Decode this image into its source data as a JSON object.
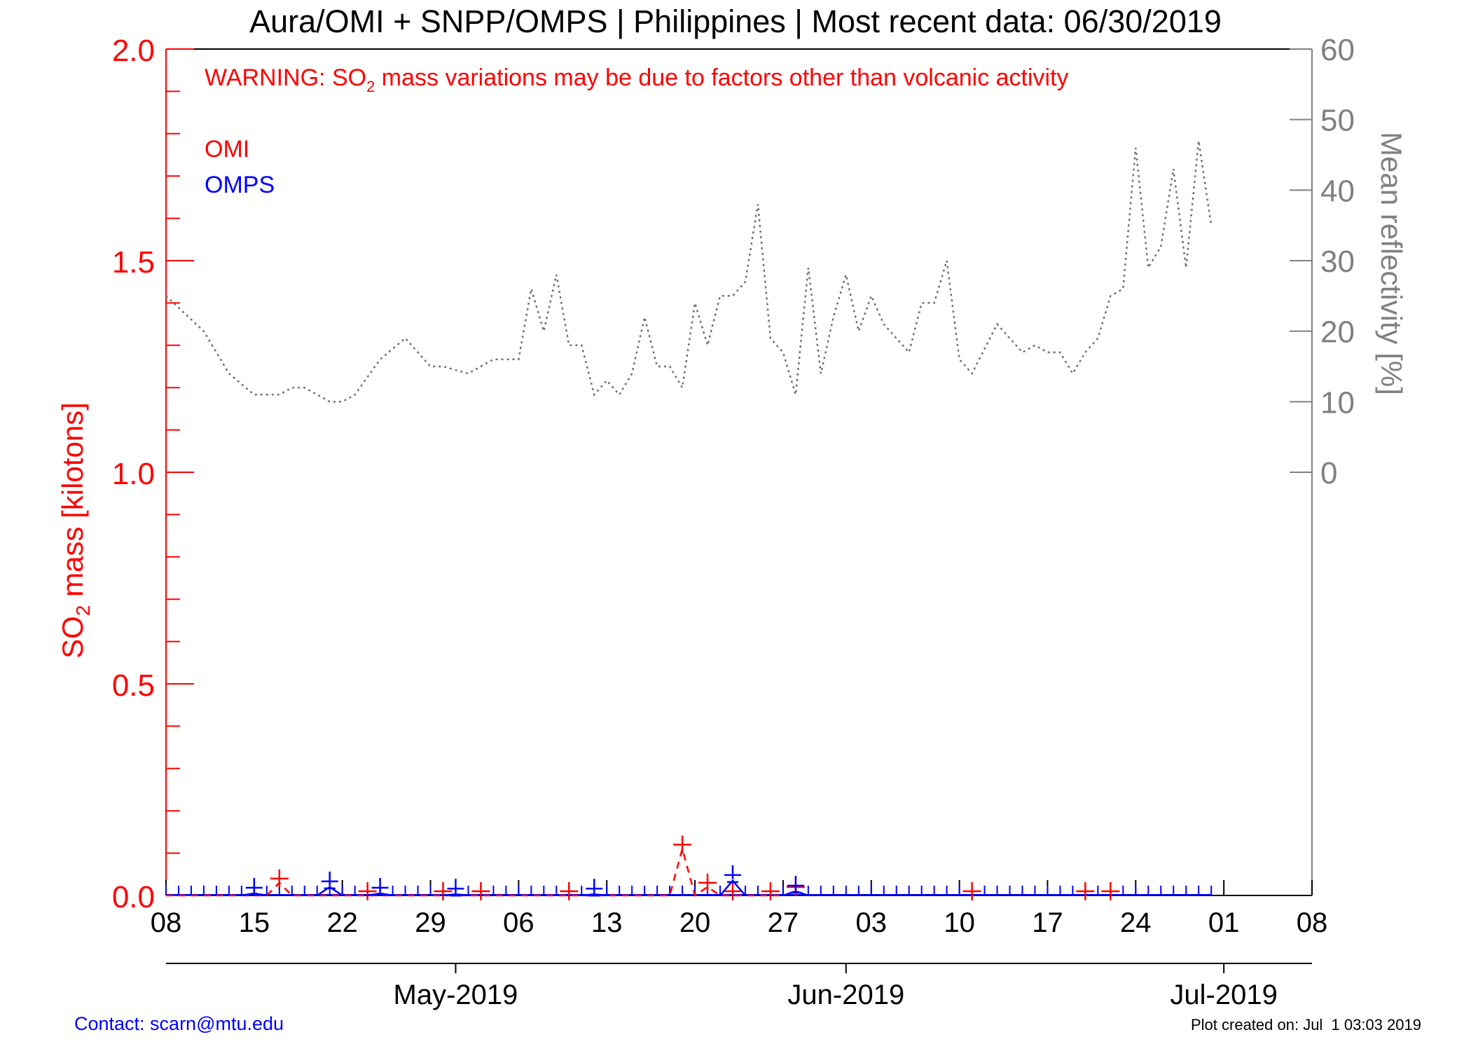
{
  "chart_data": {
    "type": "line",
    "title": "Aura/OMI + SNPP/OMPS | Philippines | Most recent data: 06/30/2019",
    "warning": {
      "prefix": "WARNING: SO",
      "sub": "2",
      "suffix": " mass variations may be due to factors other than volcanic activity"
    },
    "ylabel_left": {
      "prefix": "SO",
      "sub": "2",
      "suffix": " mass [kilotons]"
    },
    "ylabel_right": "Mean reflectivity [%]",
    "x_start": "2019-04-08",
    "x_end": "2019-07-08",
    "x_tick_labels": [
      "08",
      "15",
      "22",
      "29",
      "06",
      "13",
      "20",
      "27",
      "03",
      "10",
      "17",
      "24",
      "01",
      "08"
    ],
    "month_labels": [
      {
        "label": "May-2019",
        "date": "2019-05-01"
      },
      {
        "label": "Jun-2019",
        "date": "2019-06-01"
      },
      {
        "label": "Jul-2019",
        "date": "2019-07-01"
      }
    ],
    "ylim_left": [
      0,
      2.0
    ],
    "y_left_ticks": [
      "0.0",
      "0.5",
      "1.0",
      "1.5",
      "2.0"
    ],
    "ylim_right_display": [
      -60,
      60
    ],
    "y_right_ticks": [
      "0",
      "10",
      "20",
      "30",
      "40",
      "50",
      "60"
    ],
    "series": [
      {
        "name": "OMI",
        "color": "#ff0000",
        "line_style": "dashed",
        "x": [
          "2019-04-08",
          "2019-04-09",
          "2019-04-10",
          "2019-04-11",
          "2019-04-12",
          "2019-04-13",
          "2019-04-14",
          "2019-04-15",
          "2019-04-16",
          "2019-04-17",
          "2019-04-18",
          "2019-04-19",
          "2019-04-20",
          "2019-04-21",
          "2019-04-22",
          "2019-04-23",
          "2019-04-24",
          "2019-04-25",
          "2019-04-26",
          "2019-04-27",
          "2019-04-28",
          "2019-04-29",
          "2019-04-30",
          "2019-05-01",
          "2019-05-02",
          "2019-05-03",
          "2019-05-04",
          "2019-05-05",
          "2019-05-06",
          "2019-05-07",
          "2019-05-08",
          "2019-05-09",
          "2019-05-10",
          "2019-05-11",
          "2019-05-12",
          "2019-05-13",
          "2019-05-14",
          "2019-05-15",
          "2019-05-16",
          "2019-05-17",
          "2019-05-18",
          "2019-05-19",
          "2019-05-20",
          "2019-05-21",
          "2019-05-22",
          "2019-05-23",
          "2019-05-24",
          "2019-05-25",
          "2019-05-26",
          "2019-05-27",
          "2019-05-28"
        ],
        "y": [
          0,
          0,
          0,
          0,
          0,
          0,
          0,
          0,
          0,
          0.03,
          0,
          0,
          0,
          0,
          0,
          0,
          0,
          0,
          0,
          0,
          0,
          0,
          0,
          0,
          0,
          0,
          0,
          0,
          0,
          0,
          0,
          0,
          0,
          0,
          0,
          0,
          0,
          0,
          0,
          0,
          0,
          0.11,
          0,
          0.02,
          0,
          0,
          0,
          0,
          0,
          0,
          0.01
        ],
        "labeled_points": [
          "2019-04-17",
          "2019-04-24",
          "2019-04-30",
          "2019-05-03",
          "2019-05-10",
          "2019-05-19",
          "2019-05-21",
          "2019-05-23",
          "2019-05-26",
          "2019-05-28",
          "2019-06-11",
          "2019-06-20",
          "2019-06-22"
        ]
      },
      {
        "name": "OMPS",
        "color": "#0000ff",
        "line_style": "solid",
        "x": [
          "2019-04-15",
          "2019-04-21",
          "2019-04-25",
          "2019-05-01",
          "2019-05-12",
          "2019-05-23",
          "2019-05-28"
        ],
        "y": [
          0.005,
          0.02,
          0.005,
          0.003,
          0.003,
          0.035,
          0.01
        ]
      },
      {
        "name": "Mean reflectivity",
        "color": "#707070",
        "line_style": "dotted",
        "axis": "right",
        "x": [
          "2019-04-08",
          "2019-04-11",
          "2019-04-13",
          "2019-04-15",
          "2019-04-17",
          "2019-04-18",
          "2019-04-19",
          "2019-04-21",
          "2019-04-22",
          "2019-04-23",
          "2019-04-25",
          "2019-04-27",
          "2019-04-29",
          "2019-04-30",
          "2019-05-02",
          "2019-05-04",
          "2019-05-06",
          "2019-05-07",
          "2019-05-08",
          "2019-05-09",
          "2019-05-10",
          "2019-05-11",
          "2019-05-12",
          "2019-05-13",
          "2019-05-14",
          "2019-05-15",
          "2019-05-16",
          "2019-05-17",
          "2019-05-18",
          "2019-05-19",
          "2019-05-20",
          "2019-05-21",
          "2019-05-22",
          "2019-05-23",
          "2019-05-24",
          "2019-05-25",
          "2019-05-26",
          "2019-05-27",
          "2019-05-28",
          "2019-05-29",
          "2019-05-30",
          "2019-05-31",
          "2019-06-01",
          "2019-06-02",
          "2019-06-03",
          "2019-06-04",
          "2019-06-06",
          "2019-06-07",
          "2019-06-08",
          "2019-06-09",
          "2019-06-10",
          "2019-06-11",
          "2019-06-13",
          "2019-06-15",
          "2019-06-16",
          "2019-06-17",
          "2019-06-18",
          "2019-06-19",
          "2019-06-20",
          "2019-06-21",
          "2019-06-22",
          "2019-06-23",
          "2019-06-24",
          "2019-06-25",
          "2019-06-26",
          "2019-06-27",
          "2019-06-28",
          "2019-06-29",
          "2019-06-30"
        ],
        "y": [
          25,
          20,
          14,
          11,
          11,
          12,
          12,
          10,
          10,
          11,
          16,
          19,
          15,
          15,
          14,
          16,
          16,
          26,
          20,
          28,
          18,
          18,
          11,
          13,
          11,
          14,
          22,
          15,
          15,
          12,
          24,
          18,
          25,
          25,
          27,
          38,
          19,
          17,
          11,
          29,
          14,
          22,
          28,
          20,
          25,
          21,
          17,
          24,
          24,
          30,
          16,
          14,
          21,
          17,
          18,
          17,
          17,
          14,
          17,
          19,
          25,
          26,
          46,
          29,
          32,
          43,
          29,
          47,
          35
        ]
      }
    ],
    "grid": false,
    "legend": {
      "position": "top-left",
      "entries": [
        "OMI",
        "OMPS"
      ]
    }
  },
  "footer": {
    "contact": "Contact: scarn@mtu.edu",
    "created": "Plot created on: Jul  1 03:03 2019"
  }
}
